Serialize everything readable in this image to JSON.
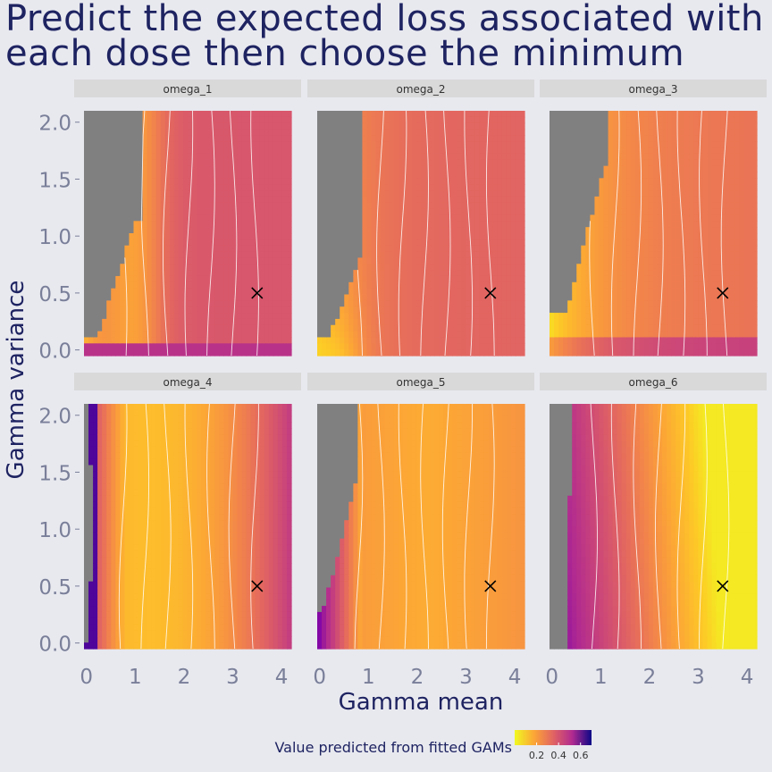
{
  "title_lines": [
    "Predict the expected loss associated with",
    "each dose then choose the minimum"
  ],
  "chart_data": {
    "type": "heatmap",
    "facets": [
      "omega_1",
      "omega_2",
      "omega_3",
      "omega_4",
      "omega_5",
      "omega_6"
    ],
    "xlabel": "Gamma mean",
    "ylabel": "Gamma variance",
    "xlim": [
      -0.05,
      4.2
    ],
    "ylim": [
      -0.05,
      2.1
    ],
    "x_ticks": [
      0,
      1,
      2,
      3,
      4
    ],
    "y_ticks": [
      0.0,
      0.5,
      1.0,
      1.5,
      2.0
    ],
    "y_tick_labels": [
      "0.0",
      "0.5",
      "1.0",
      "1.5",
      "2.0"
    ],
    "marker": {
      "label": "chosen point",
      "x": 3.5,
      "y": 0.5
    },
    "legend": {
      "title": "Value predicted from fitted GAMs",
      "ticks": [
        0.2,
        0.4,
        0.6
      ],
      "range": [
        0.0,
        0.7
      ],
      "position": "bottom"
    },
    "colors": {
      "low": "#f0f921",
      "mid_low": "#fba238",
      "mid": "#e16462",
      "mid_high": "#b12a90",
      "high": "#6a00a8",
      "very_high": "#0d0887",
      "missing": "#808080",
      "title": "#1e2361",
      "strip": "#d9d9d9",
      "background": "#e8e9ef",
      "tick_text": "#7a7f99"
    }
  }
}
